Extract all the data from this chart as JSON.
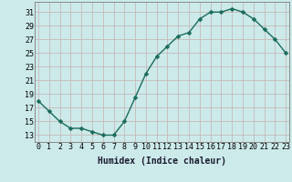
{
  "x": [
    0,
    1,
    2,
    3,
    4,
    5,
    6,
    7,
    8,
    9,
    10,
    11,
    12,
    13,
    14,
    15,
    16,
    17,
    18,
    19,
    20,
    21,
    22,
    23
  ],
  "y": [
    18,
    16.5,
    15,
    14,
    14,
    13.5,
    13,
    13,
    15,
    18.5,
    22,
    24.5,
    26,
    27.5,
    28,
    30,
    31,
    31,
    31.5,
    31,
    30,
    28.5,
    27,
    25
  ],
  "line_color": "#1a6b5a",
  "marker_color": "#1a6b5a",
  "bg_color": "#cceaea",
  "grid_color": "#c8b8b8",
  "xlabel": "Humidex (Indice chaleur)",
  "yticks": [
    13,
    15,
    17,
    19,
    21,
    23,
    25,
    27,
    29,
    31
  ],
  "xticks": [
    0,
    1,
    2,
    3,
    4,
    5,
    6,
    7,
    8,
    9,
    10,
    11,
    12,
    13,
    14,
    15,
    16,
    17,
    18,
    19,
    20,
    21,
    22,
    23
  ],
  "xlim": [
    -0.3,
    23.3
  ],
  "ylim": [
    12,
    32.5
  ],
  "xlabel_fontsize": 7,
  "tick_fontsize": 6,
  "linewidth": 1.0,
  "markersize": 2.5,
  "spine_color": "#888888"
}
